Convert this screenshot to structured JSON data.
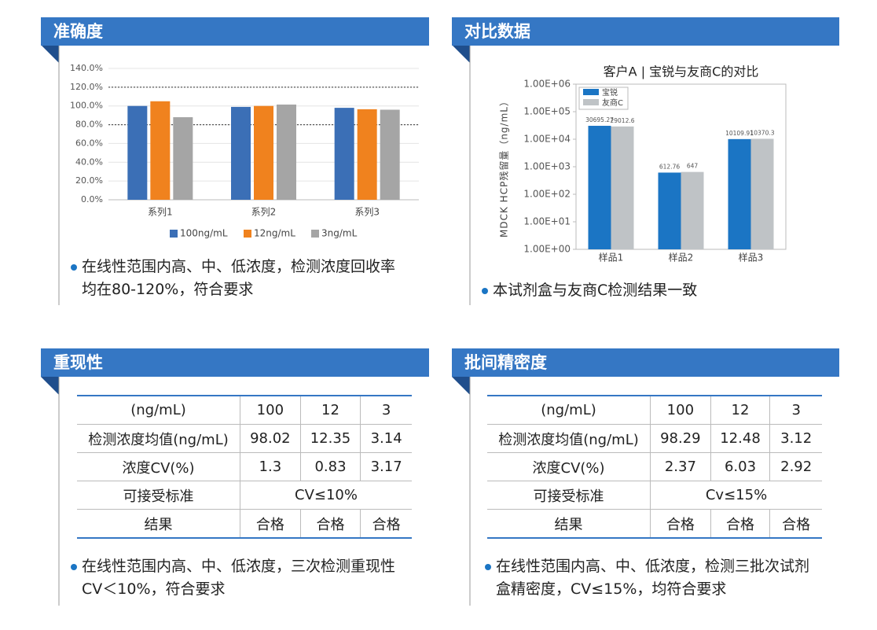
{
  "panels": [
    {
      "title": "准确度",
      "note": [
        "在线性范围内高、中、低浓度，检测浓度回收率",
        "均在80-120%，符合要求"
      ]
    },
    {
      "title": "对比数据",
      "note": [
        "本试剂盒与友商C检测结果一致"
      ]
    },
    {
      "title": "重现性",
      "note": [
        "在线性范围内高、中、低浓度，三次检测重现性",
        "CV＜10%，符合要求"
      ]
    },
    {
      "title": "批间精密度",
      "note": [
        "在线性范围内高、中、低浓度，检测三批次试剂",
        "盒精密度，CV≤15%，均符合要求"
      ]
    }
  ],
  "chart_data": [
    {
      "type": "bar",
      "categories": [
        "系列1",
        "系列2",
        "系列3"
      ],
      "series": [
        {
          "name": "100ng/mL",
          "color": "#3b6fb6",
          "values": [
            100,
            99,
            98
          ]
        },
        {
          "name": "12ng/mL",
          "color": "#f0821e",
          "values": [
            105,
            100,
            96.5
          ]
        },
        {
          "name": "3ng/mL",
          "color": "#a5a5a5",
          "values": [
            88,
            101.5,
            96
          ]
        }
      ],
      "ylim": [
        0,
        140
      ],
      "yticks": [
        {
          "value": 0,
          "label": "0.0%"
        },
        {
          "value": 20,
          "label": "20.0%"
        },
        {
          "value": 40,
          "label": "40.0%"
        },
        {
          "value": 60,
          "label": "60.0%"
        },
        {
          "value": 80,
          "label": "80.0%"
        },
        {
          "value": 100,
          "label": "100.0%"
        },
        {
          "value": 120,
          "label": "120.0%"
        },
        {
          "value": 140,
          "label": "140.0%"
        }
      ],
      "reference_lines": [
        120,
        80
      ],
      "grid": true,
      "legend": "bottom"
    },
    {
      "type": "bar",
      "title": "客户A | 宝锐与友商C的对比",
      "y_label": "MDCK HCP残留量（ng/mL）",
      "categories": [
        "样品1",
        "样品2",
        "样品3"
      ],
      "series": [
        {
          "name": "宝锐",
          "color": "#1b75c4",
          "values": [
            30695.27,
            612.76,
            10109.91
          ]
        },
        {
          "name": "友商C",
          "color": "#bfc3c6",
          "values": [
            29012.6,
            647,
            10370.3
          ]
        }
      ],
      "log": true,
      "ylim": [
        1,
        1000000
      ],
      "yticks": [
        {
          "value": 1,
          "label": "1.00E+00"
        },
        {
          "value": 10,
          "label": "1.00E+01"
        },
        {
          "value": 100,
          "label": "1.00E+02"
        },
        {
          "value": 1000,
          "label": "1.00E+03"
        },
        {
          "value": 10000,
          "label": "1.00E+04"
        },
        {
          "value": 100000,
          "label": "1.00E+05"
        },
        {
          "value": 1000000,
          "label": "1.00E+06"
        }
      ],
      "grid": false,
      "legend": "upper left"
    }
  ],
  "tables": [
    {
      "header": [
        "(ng/mL)",
        "100",
        "12",
        "3"
      ],
      "rows": [
        [
          "检测浓度均值(ng/mL)",
          "98.02",
          "12.35",
          "3.14"
        ],
        [
          "浓度CV(%)",
          "1.3",
          "0.83",
          "3.17"
        ],
        [
          "可接受标准",
          "CV≤10%"
        ],
        [
          "结果",
          "合格",
          "合格",
          "合格"
        ]
      ]
    },
    {
      "header": [
        "(ng/mL)",
        "100",
        "12",
        "3"
      ],
      "rows": [
        [
          "检测浓度均值(ng/mL)",
          "98.29",
          "12.48",
          "3.12"
        ],
        [
          "浓度CV(%)",
          "2.37",
          "6.03",
          "2.92"
        ],
        [
          "可接受标准",
          "Cv≤15%"
        ],
        [
          "结果",
          "合格",
          "合格",
          "合格"
        ]
      ]
    }
  ]
}
